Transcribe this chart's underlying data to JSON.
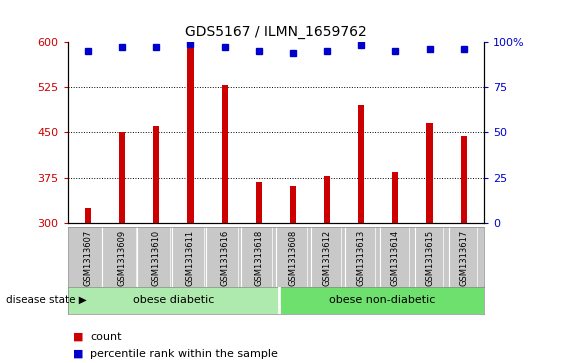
{
  "title": "GDS5167 / ILMN_1659762",
  "samples": [
    "GSM1313607",
    "GSM1313609",
    "GSM1313610",
    "GSM1313611",
    "GSM1313616",
    "GSM1313618",
    "GSM1313608",
    "GSM1313612",
    "GSM1313613",
    "GSM1313614",
    "GSM1313615",
    "GSM1313617"
  ],
  "counts": [
    325,
    450,
    460,
    590,
    528,
    368,
    362,
    378,
    495,
    385,
    465,
    445
  ],
  "percentiles": [
    95,
    97,
    97,
    99,
    97,
    95,
    94,
    95,
    98,
    95,
    96,
    96
  ],
  "ylim": [
    300,
    600
  ],
  "yticks": [
    300,
    375,
    450,
    525,
    600
  ],
  "right_yticks": [
    0,
    25,
    50,
    75,
    100
  ],
  "right_ylim": [
    0,
    100
  ],
  "bar_color": "#cc0000",
  "dot_color": "#0000cc",
  "group1_label": "obese diabetic",
  "group2_label": "obese non-diabetic",
  "group1_count": 6,
  "group2_count": 6,
  "group_bg_color": "#90ee90",
  "tick_bg_color": "#c8c8c8",
  "disease_state_label": "disease state",
  "legend_count_label": "count",
  "legend_percentile_label": "percentile rank within the sample",
  "bar_width": 0.18
}
